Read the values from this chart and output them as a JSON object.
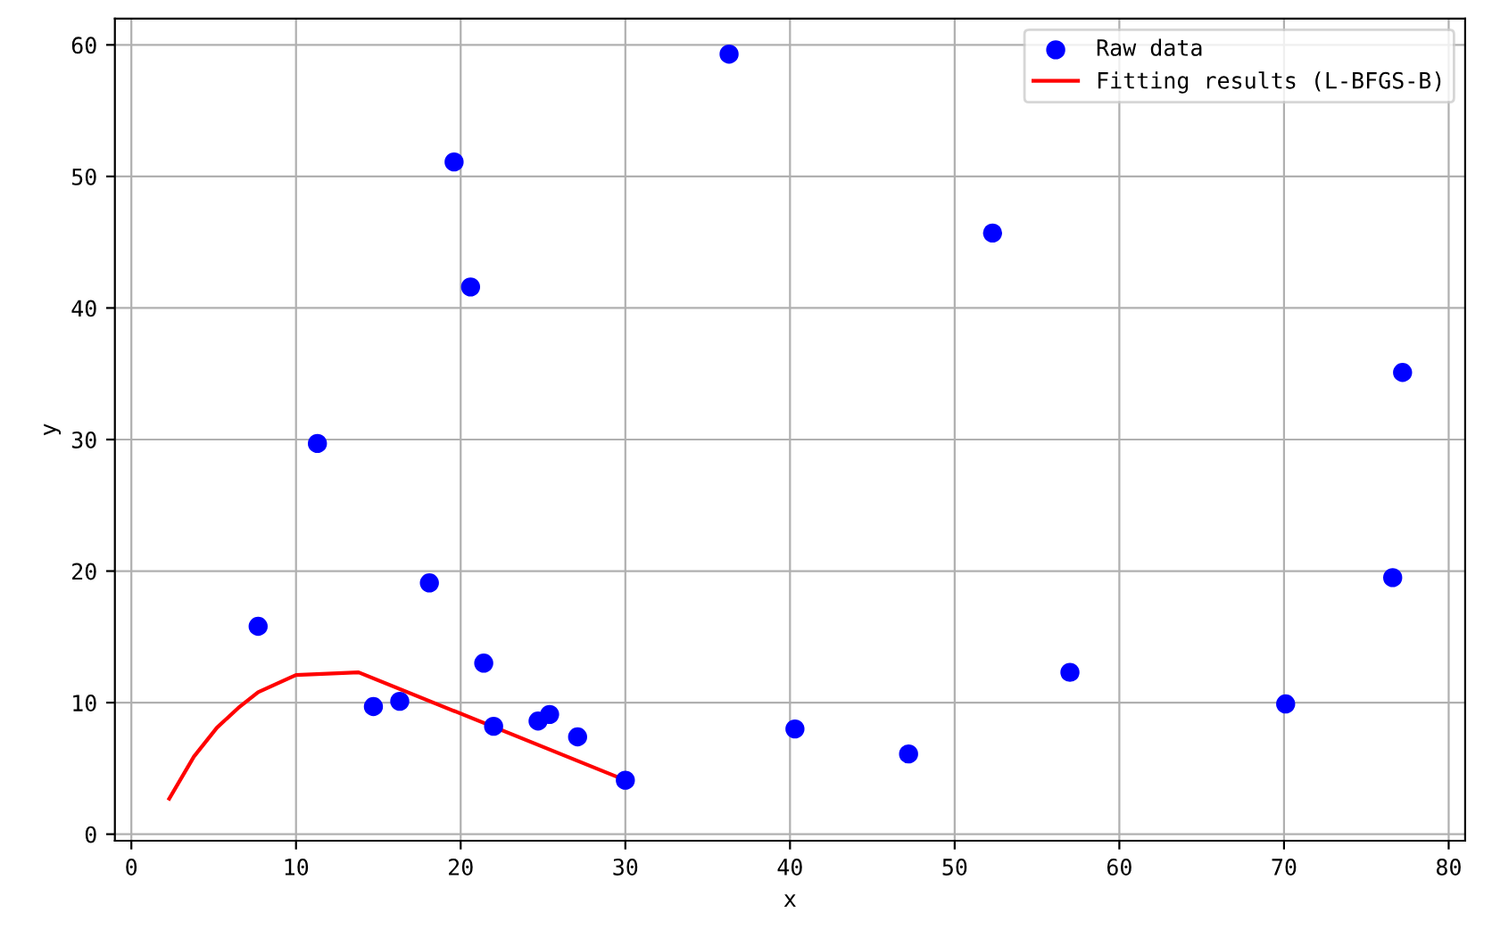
{
  "chart_data": {
    "type": "scatter",
    "xlabel": "x",
    "ylabel": "y",
    "xlim": [
      -1,
      81
    ],
    "ylim": [
      -0.5,
      62
    ],
    "xticks": [
      0,
      10,
      20,
      30,
      40,
      50,
      60,
      70,
      80
    ],
    "yticks": [
      0,
      10,
      20,
      30,
      40,
      50,
      60
    ],
    "grid": true,
    "legend": "top right",
    "series": [
      {
        "name": "Raw data",
        "color": "#0000ff",
        "marker": "circle",
        "x": [
          7.7,
          11.3,
          14.7,
          16.3,
          18.1,
          19.6,
          20.6,
          21.4,
          22.0,
          24.7,
          25.4,
          27.1,
          30.0,
          36.3,
          40.3,
          47.2,
          52.3,
          57.0,
          70.1,
          76.6,
          77.2
        ],
        "values": [
          15.8,
          29.7,
          9.7,
          10.1,
          19.1,
          51.1,
          41.6,
          13.0,
          8.2,
          8.6,
          9.1,
          7.4,
          4.1,
          59.3,
          8.0,
          6.1,
          45.7,
          12.3,
          9.9,
          19.5,
          35.1
        ]
      },
      {
        "name": "Fitting results (L-BFGS-B)",
        "type": "line",
        "color": "#ff0000",
        "x": [
          2.3,
          3.8,
          5.2,
          6.5,
          7.7,
          10.0,
          13.8,
          30.0
        ],
        "values": [
          2.7,
          5.9,
          8.1,
          9.6,
          10.8,
          12.1,
          12.3,
          4.1
        ]
      }
    ]
  }
}
